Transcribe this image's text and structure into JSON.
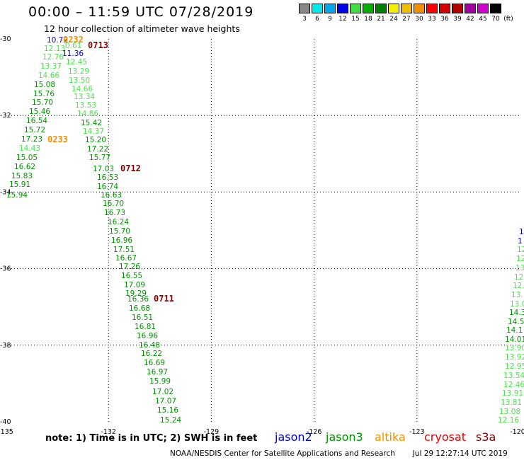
{
  "title": "00:00 – 11:59 UTC 07/28/2019",
  "subtitle": "12 hour collection of altimeter wave heights",
  "color_scale": {
    "values": [
      "3",
      "6",
      "9",
      "12",
      "15",
      "18",
      "21",
      "24",
      "27",
      "30",
      "33",
      "36",
      "39",
      "42",
      "45",
      "70"
    ],
    "unit": "(ft)",
    "colors": [
      "#888888",
      "#00e8e8",
      "#00a8e8",
      "#0000e8",
      "#40e040",
      "#00b000",
      "#008000",
      "#f0f000",
      "#f0c000",
      "#f09000",
      "#ff0000",
      "#d00000",
      "#b00000",
      "#a000a0",
      "#d000d0",
      "#000000"
    ]
  },
  "map": {
    "lon_labels": [
      "-135",
      "-132",
      "-129",
      "-126",
      "-123",
      "-120"
    ],
    "lat_labels": [
      "-30",
      "-32",
      "-34",
      "-36",
      "-38",
      "-40"
    ]
  },
  "observations": [
    {
      "text": "10.72",
      "color": "#0000c0"
    },
    {
      "text": "12.13",
      "color": "#50e050"
    },
    {
      "text": "0.61",
      "color": "#50e050"
    },
    {
      "text": "11.36",
      "color": "#0000c0"
    },
    {
      "text": "12.76",
      "color": "#50e050"
    },
    {
      "text": "13.37",
      "color": "#50e050"
    },
    {
      "text": "12.45",
      "color": "#50e050"
    },
    {
      "text": "14.66",
      "color": "#50e050"
    },
    {
      "text": "13.29",
      "color": "#50e050"
    },
    {
      "text": "13.50",
      "color": "#50e050"
    },
    {
      "text": "15.08",
      "color": "#009000"
    },
    {
      "text": "14.66",
      "color": "#50e050"
    },
    {
      "text": "15.76",
      "color": "#009000"
    },
    {
      "text": "13.34",
      "color": "#50e050"
    },
    {
      "text": "15.70",
      "color": "#009000"
    },
    {
      "text": "13.53",
      "color": "#50e050"
    },
    {
      "text": "15.46",
      "color": "#009000"
    },
    {
      "text": "14.86",
      "color": "#50e050"
    },
    {
      "text": "16.54",
      "color": "#009000"
    },
    {
      "text": "15.42",
      "color": "#009000"
    },
    {
      "text": "15.72",
      "color": "#009000"
    },
    {
      "text": "14.37",
      "color": "#50e050"
    },
    {
      "text": "17.23",
      "color": "#009000"
    },
    {
      "text": "15.20",
      "color": "#009000"
    },
    {
      "text": "14.43",
      "color": "#50e050"
    },
    {
      "text": "17.22",
      "color": "#009000"
    },
    {
      "text": "15.05",
      "color": "#009000"
    },
    {
      "text": "15.77",
      "color": "#009000"
    },
    {
      "text": "16.62",
      "color": "#009000"
    },
    {
      "text": "17.03",
      "color": "#009000"
    },
    {
      "text": "15.83",
      "color": "#009000"
    },
    {
      "text": "16.53",
      "color": "#009000"
    },
    {
      "text": "15.91",
      "color": "#009000"
    },
    {
      "text": "16.74",
      "color": "#009000"
    },
    {
      "text": "15.94",
      "color": "#009000"
    },
    {
      "text": "16.63",
      "color": "#009000"
    },
    {
      "text": "16.70",
      "color": "#009000"
    },
    {
      "text": "16.73",
      "color": "#009000"
    },
    {
      "text": "16.24",
      "color": "#009000"
    },
    {
      "text": "15.70",
      "color": "#009000"
    },
    {
      "text": "16.96",
      "color": "#009000"
    },
    {
      "text": "17.51",
      "color": "#009000"
    },
    {
      "text": "16.67",
      "color": "#009000"
    },
    {
      "text": "17.26",
      "color": "#009000"
    },
    {
      "text": "16.55",
      "color": "#009000"
    },
    {
      "text": "17.09",
      "color": "#009000"
    },
    {
      "text": "19.29",
      "color": "#009000"
    },
    {
      "text": "16.36",
      "color": "#009000"
    },
    {
      "text": "16.68",
      "color": "#009000"
    },
    {
      "text": "16.51",
      "color": "#009000"
    },
    {
      "text": "16.81",
      "color": "#009000"
    },
    {
      "text": "16.96",
      "color": "#009000"
    },
    {
      "text": "16.48",
      "color": "#009000"
    },
    {
      "text": "16.22",
      "color": "#009000"
    },
    {
      "text": "16.69",
      "color": "#009000"
    },
    {
      "text": "16.97",
      "color": "#009000"
    },
    {
      "text": "15.99",
      "color": "#009000"
    },
    {
      "text": "17.02",
      "color": "#009000"
    },
    {
      "text": "17.07",
      "color": "#009000"
    },
    {
      "text": "15.16",
      "color": "#009000"
    },
    {
      "text": "15.24",
      "color": "#009000"
    },
    {
      "text": "1",
      "color": "#0000c0"
    },
    {
      "text": "1",
      "color": "#0000c0"
    },
    {
      "text": "12",
      "color": "#50e050"
    },
    {
      "text": "12",
      "color": "#50e050"
    },
    {
      "text": "13",
      "color": "#50e050"
    },
    {
      "text": "12",
      "color": "#50e050"
    },
    {
      "text": "12.",
      "color": "#50e050"
    },
    {
      "text": "13.",
      "color": "#50e050"
    },
    {
      "text": "13.0",
      "color": "#50e050"
    },
    {
      "text": "14.3",
      "color": "#009000"
    },
    {
      "text": "14.5",
      "color": "#009000"
    },
    {
      "text": "14.1",
      "color": "#009000"
    },
    {
      "text": "14.01",
      "color": "#009000"
    },
    {
      "text": "13.90",
      "color": "#50e050"
    },
    {
      "text": "13.92",
      "color": "#50e050"
    },
    {
      "text": "12.95",
      "color": "#50e050"
    },
    {
      "text": "13.54",
      "color": "#50e050"
    },
    {
      "text": "12.46",
      "color": "#50e050"
    },
    {
      "text": "13.91",
      "color": "#50e050"
    },
    {
      "text": "13.81",
      "color": "#50e050"
    },
    {
      "text": "13.08",
      "color": "#50e050"
    },
    {
      "text": "12.16",
      "color": "#50e050"
    }
  ],
  "pass_times": [
    {
      "text": "0232",
      "color": "#f09000"
    },
    {
      "text": "0713",
      "color": "#800000"
    },
    {
      "text": "0233",
      "color": "#f09000"
    },
    {
      "text": "0712",
      "color": "#800000"
    },
    {
      "text": "0711",
      "color": "#800000"
    }
  ],
  "note": "note:  1) Time is in UTC;  2) SWH is in feet",
  "legend": [
    {
      "label": "jason2",
      "color": "#0000cc"
    },
    {
      "label": "jason3",
      "color": "#009000"
    },
    {
      "label": "altika",
      "color": "#f09000"
    },
    {
      "label": "cryosat",
      "color": "#e00000"
    },
    {
      "label": "s3a",
      "color": "#800000"
    }
  ],
  "footer_left": "NOAA/NESDIS Center for Satellite Applications and Research",
  "footer_right": "Jul 29 12:27:14 UTC 2019"
}
